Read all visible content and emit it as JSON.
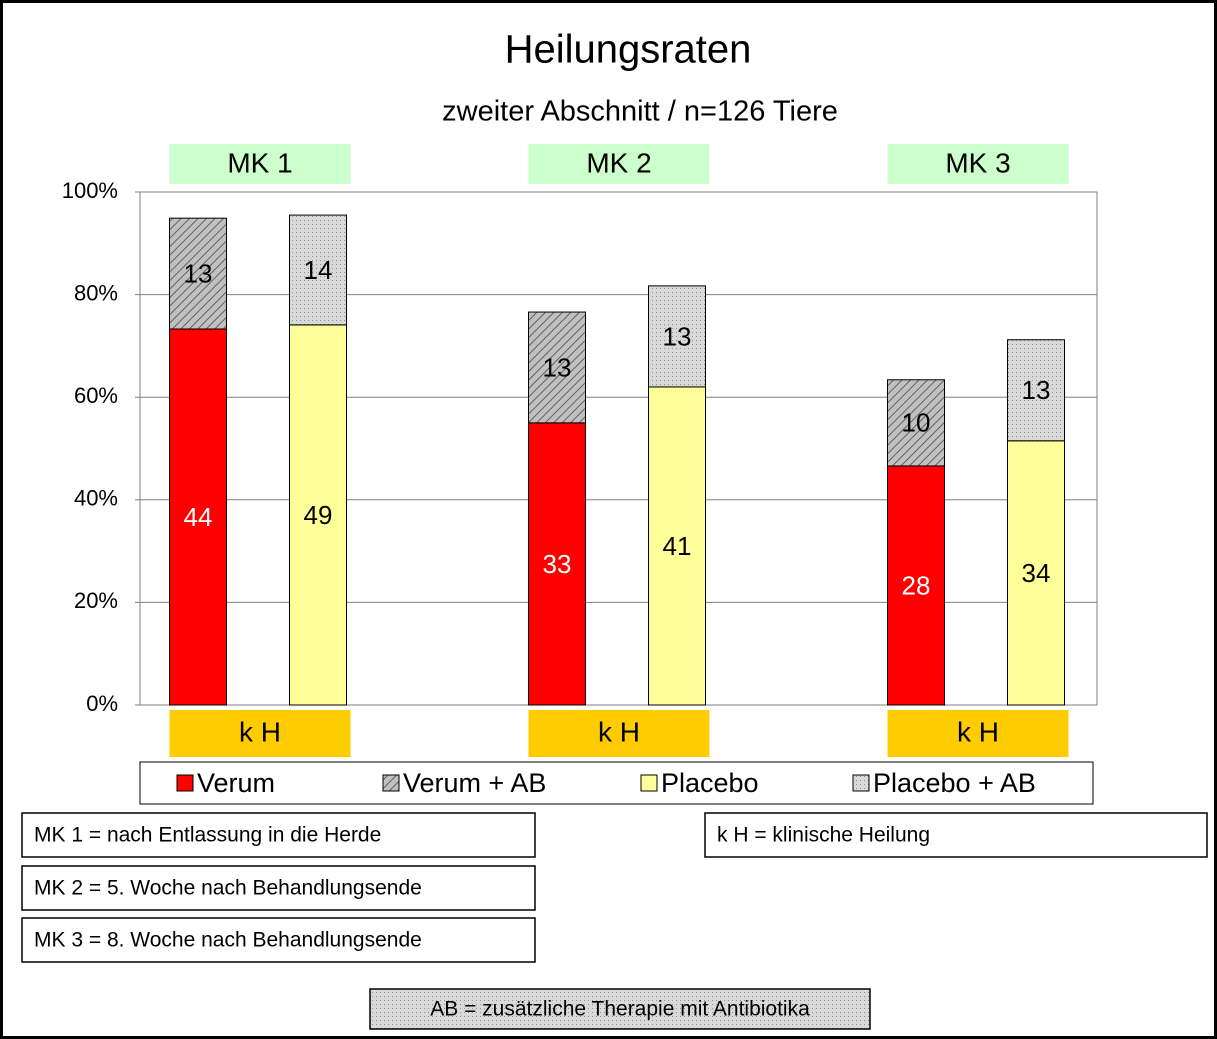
{
  "chart_data": {
    "type": "stacked_grouped_bar",
    "title": "Heilungsraten",
    "subtitle": "zweiter Abschnitt / n=126 Tiere",
    "groups": [
      "MK 1",
      "MK 2",
      "MK 3"
    ],
    "group_footer": "k H",
    "series": [
      {
        "name": "Verum",
        "stack": 0,
        "color": "#ff0000",
        "pattern": "solid",
        "label_color": "#ffffff",
        "values": [
          73.3,
          55.0,
          46.6
        ],
        "data_labels": [
          "44",
          "33",
          "28"
        ]
      },
      {
        "name": "Verum + AB",
        "stack": 0,
        "color": "#c0c0c0",
        "pattern": "hatch",
        "label_color": "#000000",
        "values": [
          21.6,
          21.6,
          16.8
        ],
        "data_labels": [
          "13",
          "13",
          "10"
        ]
      },
      {
        "name": "Placebo",
        "stack": 1,
        "color": "#ffff99",
        "pattern": "solid",
        "label_color": "#000000",
        "values": [
          74.1,
          62.0,
          51.5
        ],
        "data_labels": [
          "49",
          "41",
          "34"
        ]
      },
      {
        "name": "Placebo + AB",
        "stack": 1,
        "color": "#d9d9d9",
        "pattern": "dots",
        "label_color": "#000000",
        "values": [
          21.4,
          19.7,
          19.7
        ],
        "data_labels": [
          "14",
          "13",
          "13"
        ]
      }
    ],
    "ylim": [
      0,
      100
    ],
    "yticks": [
      {
        "value": 0,
        "label": "0%"
      },
      {
        "value": 20,
        "label": "20%"
      },
      {
        "value": 40,
        "label": "40%"
      },
      {
        "value": 60,
        "label": "60%"
      },
      {
        "value": 80,
        "label": "80%"
      },
      {
        "value": 100,
        "label": "100%"
      }
    ],
    "grid": true,
    "legend": "bottom",
    "annotations": [
      "MK 1 = nach Entlassung in die Herde",
      "MK 2 = 5. Woche nach Behandlungsende",
      "MK 3 = 8. Woche nach Behandlungsende",
      "k H = klinische Heilung"
    ],
    "footnote": "AB = zusätzliche Therapie mit Antibiotika"
  }
}
